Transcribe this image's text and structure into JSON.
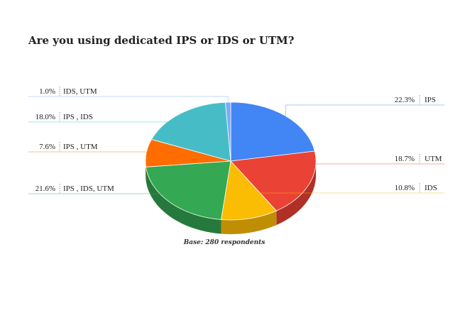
{
  "chart_data": {
    "type": "pie",
    "style": "3d",
    "title": "Are you using dedicated IPS or IDS or UTM?",
    "annotation": "Base: 280 respondents",
    "slices": [
      {
        "label": "IPS",
        "value": 22.3,
        "value_label": "22.3%",
        "color": "#4285f4",
        "side_color": "#3367c2"
      },
      {
        "label": "UTM",
        "value": 18.7,
        "value_label": "18.7%",
        "color": "#ea4335",
        "side_color": "#b03027"
      },
      {
        "label": "IDS",
        "value": 10.8,
        "value_label": "10.8%",
        "color": "#fbbc04",
        "side_color": "#bf8e03"
      },
      {
        "label": "IPS , IDS, UTM",
        "value": 21.6,
        "value_label": "21.6%",
        "color": "#34a853",
        "side_color": "#26793c"
      },
      {
        "label": "IPS , UTM",
        "value": 7.6,
        "value_label": "7.6%",
        "color": "#ff6d01",
        "side_color": "#c05101"
      },
      {
        "label": "IPS , IDS",
        "value": 18.0,
        "value_label": "18.0%",
        "color": "#46bdc6",
        "side_color": "#338e95"
      },
      {
        "label": "IDS, UTM",
        "value": 1.0,
        "value_label": "1.0%",
        "color": "#7baaf7",
        "side_color": "#5c81bd"
      }
    ]
  }
}
